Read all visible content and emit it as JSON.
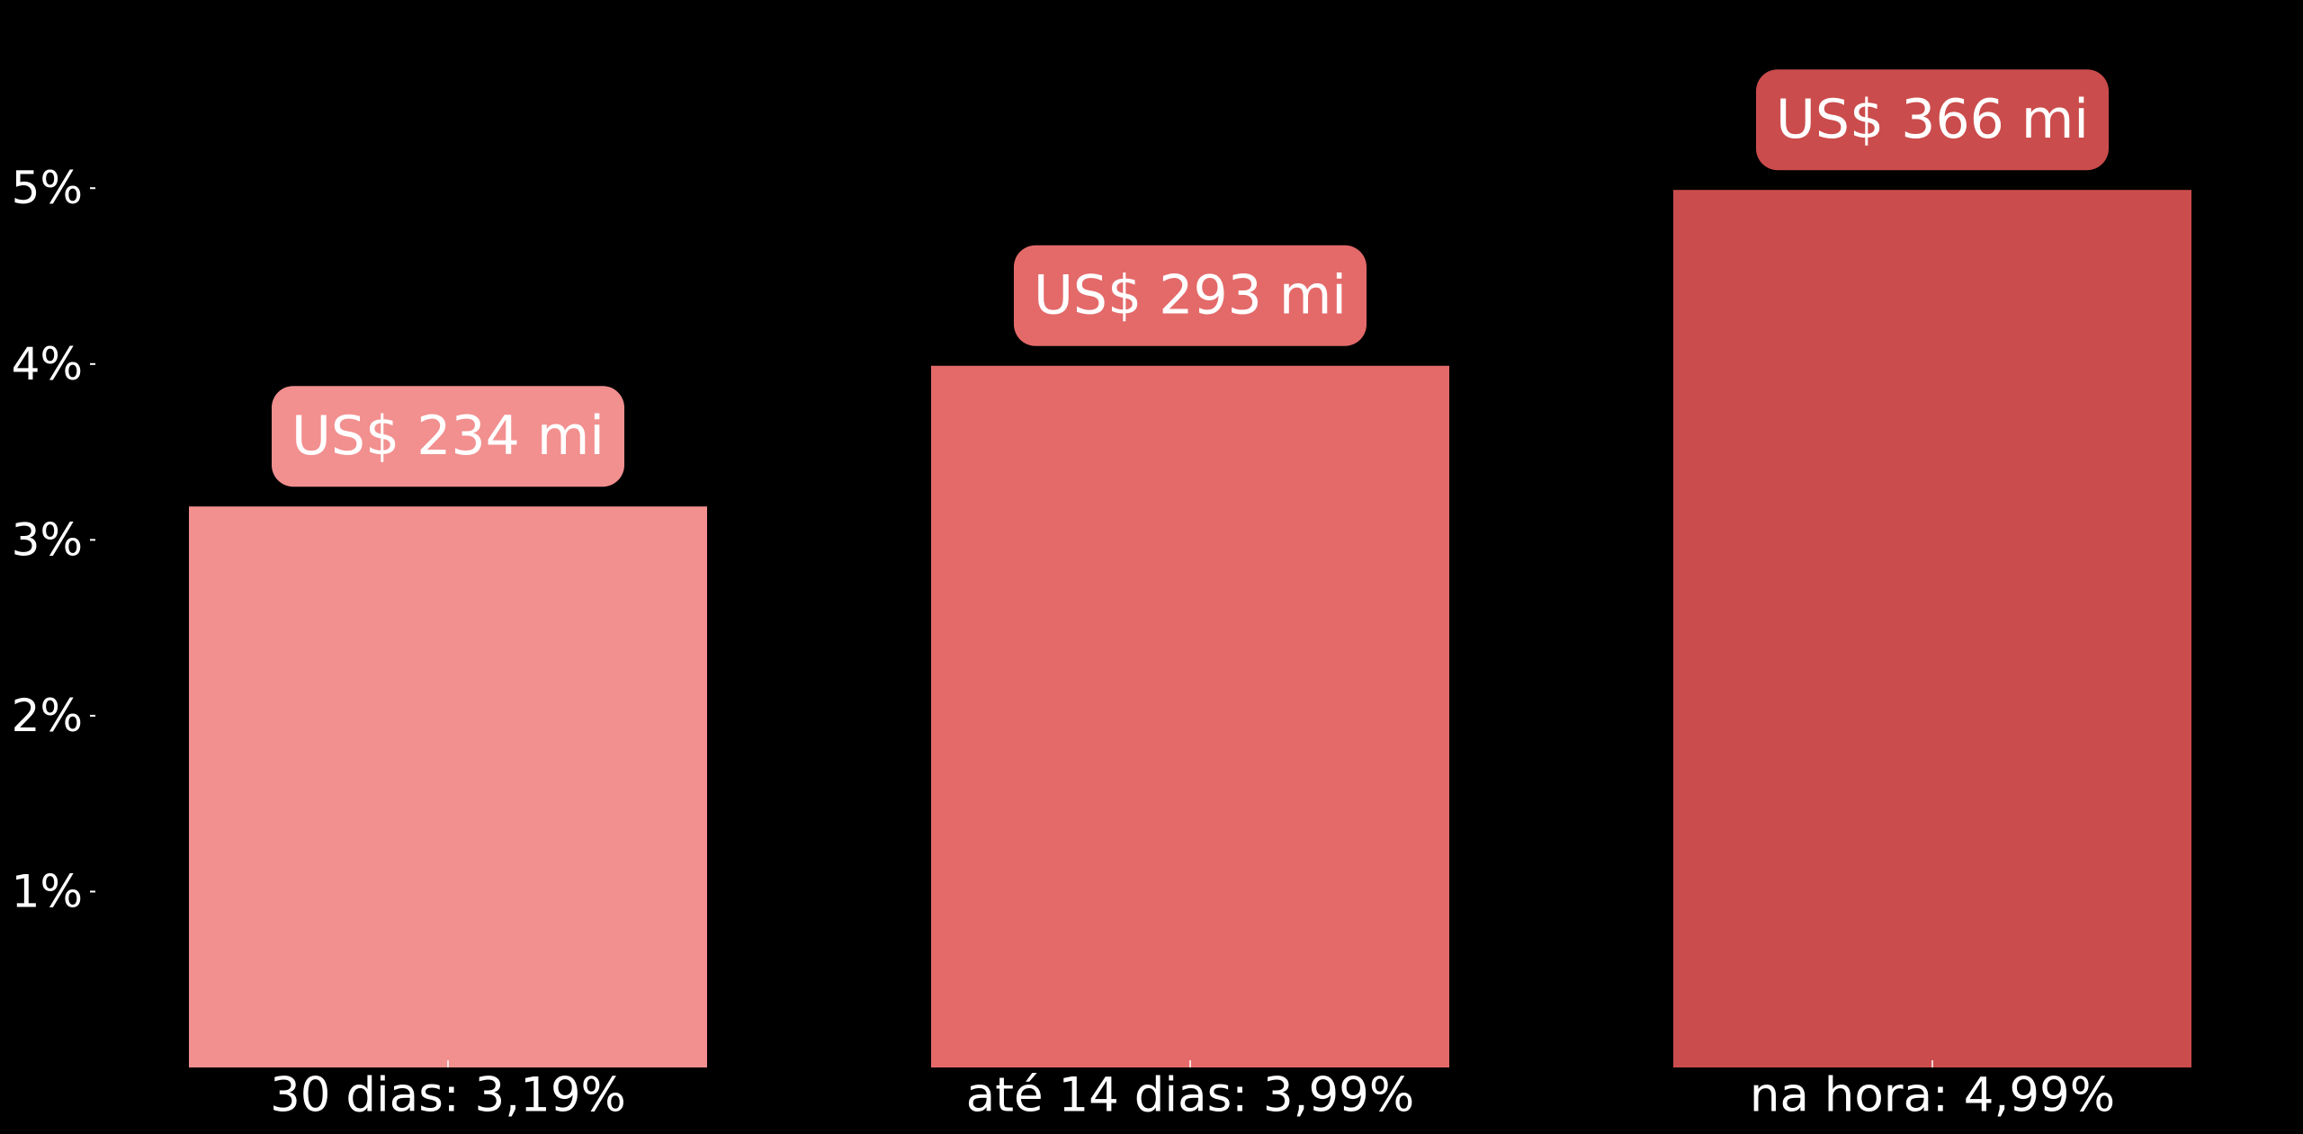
{
  "chart_data": {
    "type": "bar",
    "categories": [
      "30 dias: 3,19%",
      "até 14 dias: 3,99%",
      "na hora: 4,99%"
    ],
    "values": [
      3.19,
      3.99,
      4.99
    ],
    "data_labels": [
      "US$ 234 mi",
      "US$ 293 mi",
      "US$ 366 mi"
    ],
    "colors": [
      "#f28f8f",
      "#e46a6a",
      "#cb4c4c"
    ],
    "yticks": [
      1,
      2,
      3,
      4,
      5
    ],
    "ytick_labels": [
      "1%",
      "2%",
      "3%",
      "4%",
      "5%"
    ],
    "ylim": [
      0,
      6.07
    ],
    "background": "#000000",
    "text_color": "#ffffff",
    "grid": false,
    "legend": "none"
  }
}
